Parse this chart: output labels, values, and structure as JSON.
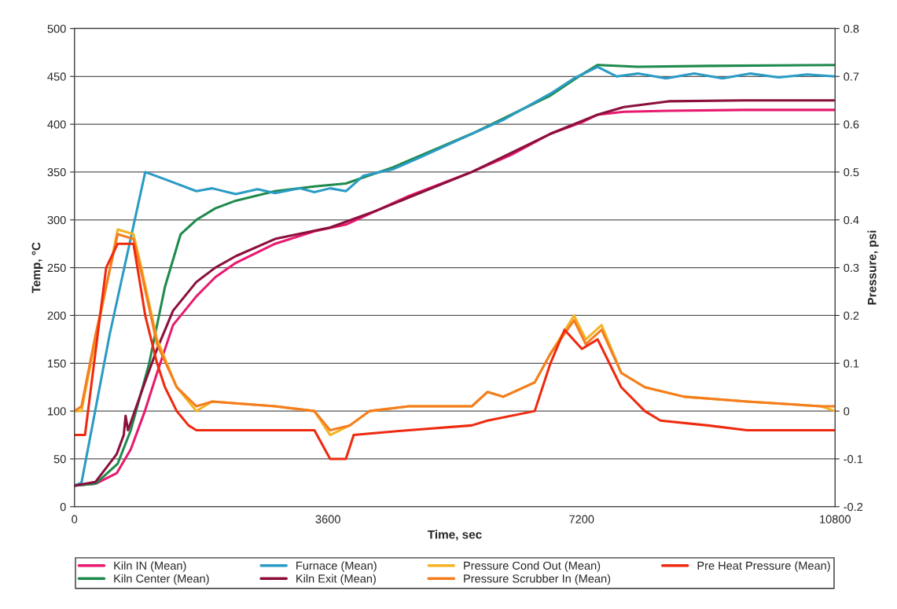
{
  "chart_data": {
    "type": "line",
    "xlabel": "Time, sec",
    "ylabel": "Temp, °C",
    "y2label": "Pressure, psi",
    "xlim": [
      0,
      10800
    ],
    "xticks": [
      0,
      3600,
      7200,
      10800
    ],
    "ylim": [
      0,
      500
    ],
    "yticks": [
      0,
      50,
      100,
      150,
      200,
      250,
      300,
      350,
      400,
      450,
      500
    ],
    "y2lim": [
      -0.2,
      0.8
    ],
    "y2ticks": [
      -0.2,
      -0.1,
      0,
      0.1,
      0.2,
      0.3,
      0.4,
      0.5,
      0.6,
      0.7,
      0.8
    ],
    "grid": "y",
    "legend": "bottom",
    "marker": "none",
    "line_style": "solid",
    "series": [
      {
        "name": "Kiln IN (Mean)",
        "color": "#e8196e",
        "x": [
          0,
          300,
          600,
          800,
          1000,
          1173,
          1400,
          1731,
          2000,
          2290,
          2848,
          3407,
          3854,
          4300,
          4747,
          5641,
          6200,
          6758,
          7205,
          7428,
          7800,
          8434,
          9500,
          10800
        ],
        "values": [
          22,
          24,
          35,
          60,
          100,
          140,
          190,
          220,
          240,
          255,
          275,
          288,
          295,
          310,
          325,
          350,
          368,
          390,
          402,
          410,
          413,
          414,
          415,
          415
        ]
      },
      {
        "name": "Kiln Center (Mean)",
        "color": "#1f8a4c",
        "x": [
          0,
          300,
          614,
          800,
          1061,
          1285,
          1508,
          1731,
          2000,
          2290,
          2848,
          3407,
          3854,
          4524,
          5641,
          6758,
          7205,
          7428,
          8000,
          9000,
          10800
        ],
        "values": [
          22,
          24,
          45,
          80,
          150,
          230,
          285,
          300,
          312,
          320,
          330,
          335,
          338,
          355,
          390,
          430,
          452,
          462,
          460,
          461,
          462
        ]
      },
      {
        "name": "Furnace (Mean)",
        "color": "#2a9bc4",
        "x": [
          0,
          100,
          500,
          1005,
          1300,
          1731,
          1955,
          2290,
          2600,
          2848,
          3200,
          3407,
          3630,
          3854,
          4100,
          4524,
          4900,
          5641,
          6100,
          6758,
          7093,
          7428,
          7700,
          8000,
          8400,
          8800,
          9200,
          9600,
          10000,
          10400,
          10800
        ],
        "values": [
          22,
          25,
          180,
          350,
          342,
          330,
          333,
          327,
          332,
          328,
          333,
          329,
          333,
          330,
          346,
          353,
          365,
          390,
          405,
          432,
          448,
          460,
          450,
          453,
          448,
          453,
          448,
          453,
          449,
          452,
          450
        ]
      },
      {
        "name": "Kiln Exit (Mean)",
        "color": "#8b0f3c",
        "x": [
          0,
          300,
          600,
          700,
          726,
          760,
          1000,
          1173,
          1400,
          1731,
          2000,
          2290,
          2848,
          3630,
          4300,
          5641,
          6758,
          7428,
          7800,
          8434,
          9500,
          10800
        ],
        "values": [
          22,
          26,
          55,
          75,
          95,
          80,
          130,
          165,
          205,
          235,
          250,
          262,
          280,
          292,
          310,
          350,
          390,
          410,
          418,
          424,
          425,
          425
        ]
      },
      {
        "name": "Pressure Cond Out (Mean)",
        "color": "#f5b323",
        "axis": "y2",
        "x": [
          0,
          100,
          300,
          614,
          838,
          950,
          1173,
          1452,
          1731,
          1955,
          2848,
          3407,
          3630,
          3910,
          4189,
          4747,
          5641,
          5864,
          6088,
          6535,
          6758,
          7093,
          7261,
          7484,
          7763,
          8098,
          8657,
          9550,
          10600,
          10800
        ],
        "values": [
          0.0,
          0.0,
          0.15,
          0.38,
          0.37,
          0.3,
          0.15,
          0.05,
          0.0,
          0.02,
          0.01,
          0.0,
          -0.05,
          -0.03,
          0.0,
          0.01,
          0.01,
          0.04,
          0.03,
          0.06,
          0.12,
          0.2,
          0.15,
          0.18,
          0.08,
          0.05,
          0.03,
          0.02,
          0.01,
          0.0
        ]
      },
      {
        "name": "Pressure Scrubber In (Mean)",
        "color": "#f47d20",
        "axis": "y2",
        "x": [
          0,
          100,
          300,
          614,
          838,
          950,
          1173,
          1452,
          1731,
          1955,
          2848,
          3407,
          3630,
          3910,
          4189,
          4747,
          5641,
          5864,
          6088,
          6535,
          6758,
          7093,
          7261,
          7484,
          7763,
          8098,
          8657,
          9550,
          10600,
          10800
        ],
        "values": [
          0.0,
          0.01,
          0.16,
          0.37,
          0.36,
          0.29,
          0.14,
          0.05,
          0.01,
          0.02,
          0.01,
          0.0,
          -0.04,
          -0.03,
          0.0,
          0.01,
          0.01,
          0.04,
          0.03,
          0.06,
          0.12,
          0.19,
          0.14,
          0.17,
          0.08,
          0.05,
          0.03,
          0.02,
          0.01,
          0.01
        ]
      },
      {
        "name": "Pre Heat Pressure (Mean)",
        "color": "#ee2a10",
        "axis": "y2",
        "x": [
          0,
          150,
          450,
          614,
          838,
          894,
          950,
          1005,
          1173,
          1285,
          1452,
          1620,
          1731,
          3407,
          3630,
          3854,
          3965,
          4747,
          5641,
          5864,
          6535,
          6758,
          6959,
          7205,
          7428,
          7763,
          8098,
          8322,
          8992,
          9550,
          10800
        ],
        "values": [
          -0.05,
          -0.05,
          0.3,
          0.35,
          0.35,
          0.3,
          0.25,
          0.2,
          0.1,
          0.05,
          0.0,
          -0.03,
          -0.04,
          -0.04,
          -0.1,
          -0.1,
          -0.05,
          -0.04,
          -0.03,
          -0.02,
          0.0,
          0.1,
          0.17,
          0.13,
          0.15,
          0.05,
          0.0,
          -0.02,
          -0.03,
          -0.04,
          -0.04
        ]
      }
    ]
  }
}
